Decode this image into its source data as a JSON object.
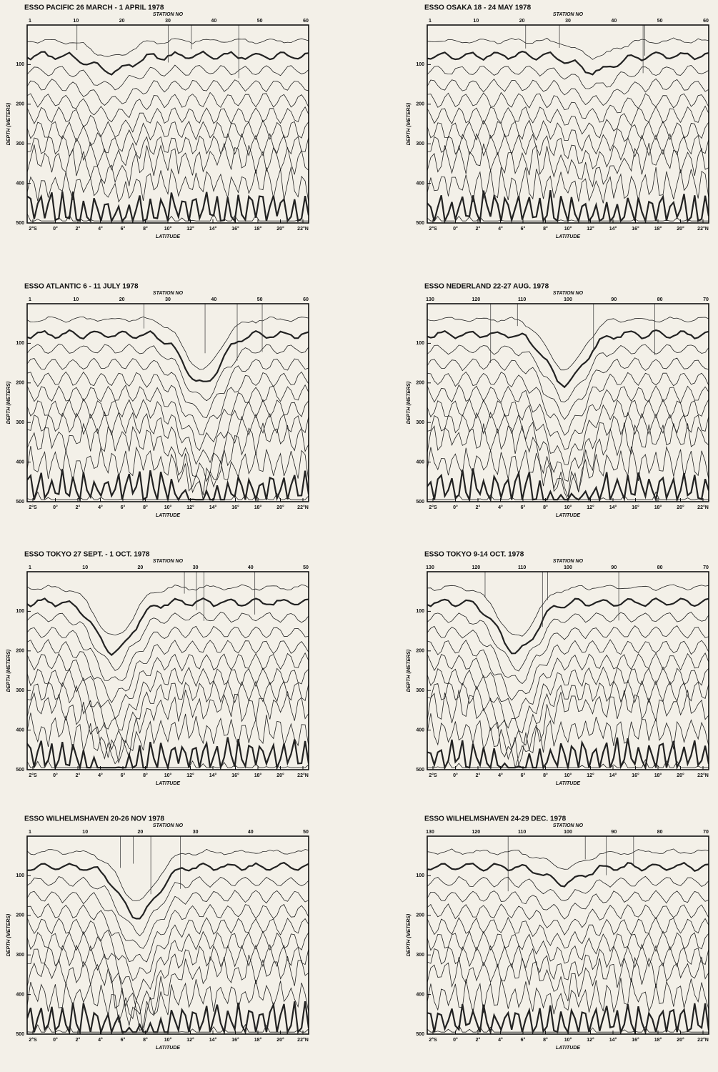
{
  "axes": {
    "station_label": "STATION NO",
    "y_label": "DEPTH (METERS)",
    "x_label": "LATITUDE",
    "y_ticks": [
      "100",
      "200",
      "300",
      "400",
      "500"
    ],
    "x_ticks": [
      "2°S",
      "0°",
      "2°",
      "4°",
      "6°",
      "8°",
      "10°",
      "12°",
      "14°",
      "16°",
      "18°",
      "20°",
      "22°N"
    ]
  },
  "panels": [
    {
      "title": "ESSO PACIFIC   26 MARCH - 1 APRIL 1978",
      "station_ticks": [
        "1",
        "10",
        "20",
        "30",
        "40",
        "50",
        "60"
      ]
    },
    {
      "title": "ESSO OSAKA   18 - 24 MAY 1978",
      "station_ticks": [
        "1",
        "10",
        "20",
        "30",
        "40",
        "50",
        "60"
      ]
    },
    {
      "title": "ESSO ATLANTIC   6 - 11 JULY 1978",
      "station_ticks": [
        "1",
        "10",
        "20",
        "30",
        "40",
        "50",
        "60"
      ]
    },
    {
      "title": "ESSO NEDERLAND   22-27 AUG. 1978",
      "station_ticks": [
        "130",
        "120",
        "110",
        "100",
        "90",
        "80",
        "70"
      ]
    },
    {
      "title": "ESSO TOKYO   27 SEPT. - 1 OCT. 1978",
      "station_ticks": [
        "1",
        "10",
        "20",
        "30",
        "40",
        "50"
      ]
    },
    {
      "title": "ESSO TOKYO   9-14 OCT. 1978",
      "station_ticks": [
        "130",
        "120",
        "110",
        "100",
        "90",
        "80",
        "70"
      ]
    },
    {
      "title": "ESSO WILHELMSHAVEN   20-26 NOV 1978",
      "station_ticks": [
        "1",
        "10",
        "20",
        "30",
        "40",
        "50"
      ]
    },
    {
      "title": "ESSO WILHELMSHAVEN   24-29 DEC. 1978",
      "station_ticks": [
        "130",
        "120",
        "110",
        "100",
        "90",
        "80",
        "70"
      ]
    }
  ]
}
